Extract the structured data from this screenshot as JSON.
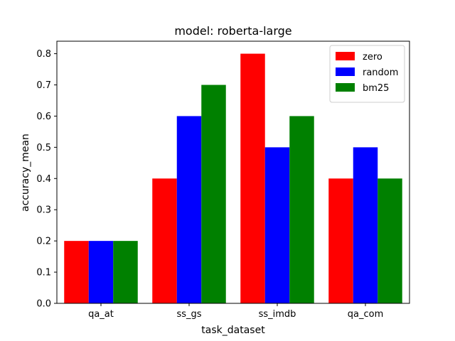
{
  "chart_data": {
    "type": "bar",
    "title": "model: roberta-large",
    "xlabel": "task_dataset",
    "ylabel": "accuracy_mean",
    "categories": [
      "qa_at",
      "ss_gs",
      "ss_imdb",
      "qa_com"
    ],
    "series": [
      {
        "name": "zero",
        "color": "#ff0000",
        "values": [
          0.2,
          0.4,
          0.8,
          0.4
        ]
      },
      {
        "name": "random",
        "color": "#0000ff",
        "values": [
          0.2,
          0.6,
          0.5,
          0.5
        ]
      },
      {
        "name": "bm25",
        "color": "#008000",
        "values": [
          0.2,
          0.7,
          0.6,
          0.4
        ]
      }
    ],
    "ylim": [
      0,
      0.84
    ],
    "yticks": [
      "0.0",
      "0.1",
      "0.2",
      "0.3",
      "0.4",
      "0.5",
      "0.6",
      "0.7",
      "0.8"
    ],
    "legend_position": "top-right",
    "grid": false
  }
}
